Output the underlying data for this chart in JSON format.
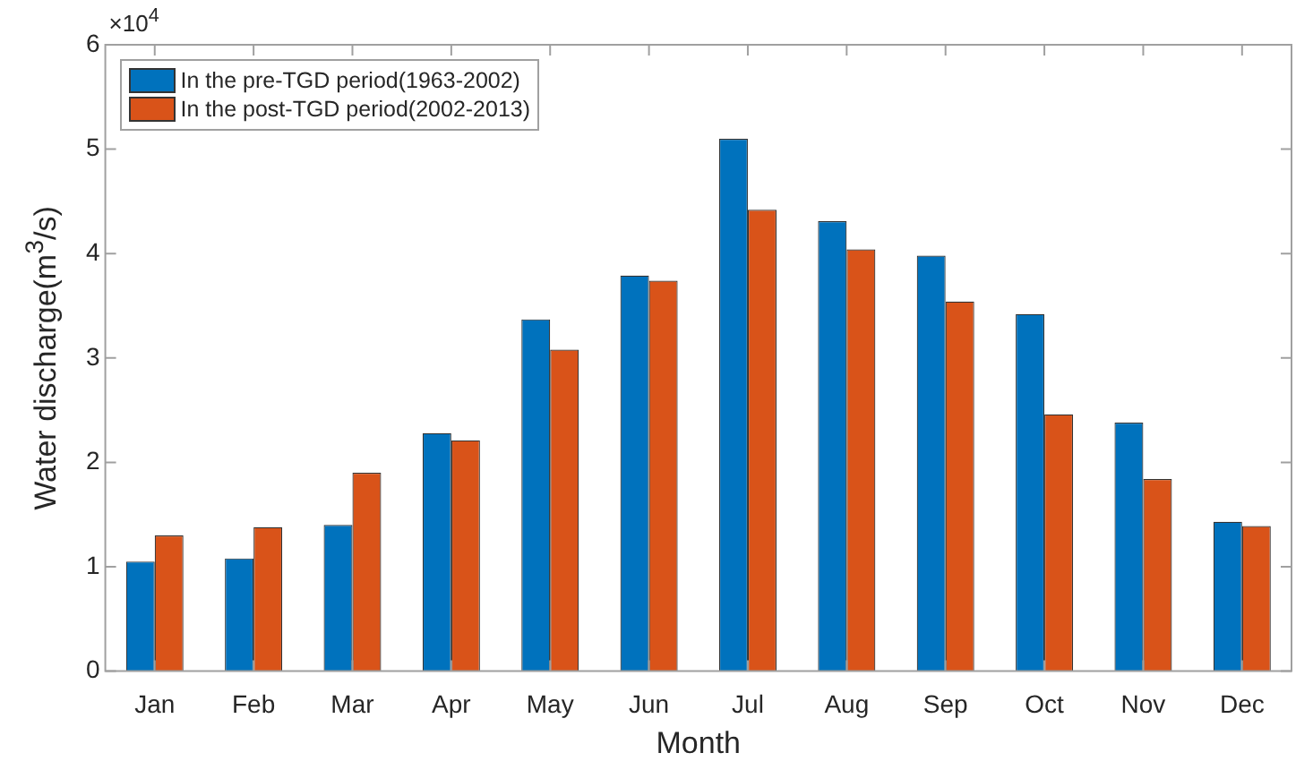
{
  "chart_data": {
    "type": "bar",
    "xlabel": "Month",
    "ylabel": "Water discharge(m$^{3}$/s)",
    "annotations": [
      "×10$^{4}$"
    ],
    "categories": [
      "Jan",
      "Feb",
      "Mar",
      "Apr",
      "May",
      "Jun",
      "Jul",
      "Aug",
      "Sep",
      "Oct",
      "Nov",
      "Dec"
    ],
    "series": [
      {
        "name": "In the pre-TGD period(1963-2002)",
        "color": "#0072bd",
        "values": [
          1.05,
          1.08,
          1.4,
          2.28,
          3.37,
          3.79,
          5.1,
          4.31,
          3.98,
          3.42,
          2.38,
          1.43
        ]
      },
      {
        "name": "In the post-TGD period(2002-2013)",
        "color": "#d95319",
        "values": [
          1.3,
          1.38,
          1.9,
          2.21,
          3.08,
          3.74,
          4.42,
          4.04,
          3.54,
          2.46,
          1.84,
          1.39
        ]
      }
    ],
    "ylim": [
      0,
      6
    ],
    "yticks": [
      0,
      1,
      2,
      3,
      4,
      5,
      6
    ],
    "legend": "top left"
  }
}
